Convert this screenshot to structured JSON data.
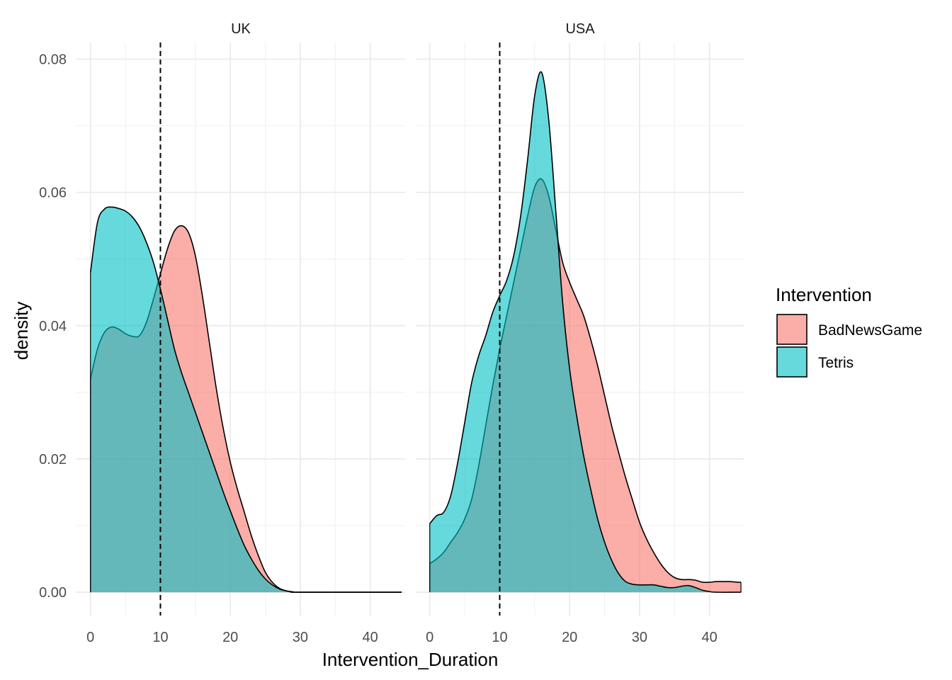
{
  "chart_data": {
    "type": "area",
    "subtype": "density",
    "xlabel": "Intervention_Duration",
    "ylabel": "density",
    "xlim": [
      -2,
      45
    ],
    "ylim": [
      -0.0035,
      0.0825
    ],
    "x_ticks": [
      0,
      10,
      20,
      30,
      40
    ],
    "y_ticks": [
      0.0,
      0.02,
      0.04,
      0.06,
      0.08
    ],
    "x_tick_labels": [
      "0",
      "10",
      "20",
      "30",
      "40"
    ],
    "y_tick_labels": [
      "0.00",
      "0.02",
      "0.04",
      "0.06",
      "0.08"
    ],
    "grid": true,
    "reference_line": {
      "x": 10,
      "style": "dashed"
    },
    "legend": {
      "title": "Intervention",
      "placement": "right",
      "entries": [
        {
          "name": "BadNewsGame",
          "color": "#F8766D"
        },
        {
          "name": "Tetris",
          "color": "#00BFC4"
        }
      ]
    },
    "panels": [
      {
        "label": "UK",
        "series": [
          {
            "name": "BadNewsGame",
            "color": "#F8766D",
            "points": [
              [
                0,
                0.032
              ],
              [
                1,
                0.0365
              ],
              [
                2,
                0.039
              ],
              [
                3,
                0.0398
              ],
              [
                4,
                0.0395
              ],
              [
                5,
                0.0388
              ],
              [
                6,
                0.0384
              ],
              [
                7,
                0.0385
              ],
              [
                8,
                0.0405
              ],
              [
                9,
                0.044
              ],
              [
                10,
                0.0478
              ],
              [
                11,
                0.0515
              ],
              [
                12,
                0.0542
              ],
              [
                13,
                0.055
              ],
              [
                14,
                0.054
              ],
              [
                15,
                0.0505
              ],
              [
                16,
                0.0445
              ],
              [
                17,
                0.0375
              ],
              [
                18,
                0.0305
              ],
              [
                19,
                0.0245
              ],
              [
                20,
                0.0195
              ],
              [
                21,
                0.0155
              ],
              [
                22,
                0.012
              ],
              [
                23,
                0.0085
              ],
              [
                24,
                0.0055
              ],
              [
                25,
                0.003
              ],
              [
                26,
                0.0015
              ],
              [
                27,
                0.0006
              ],
              [
                28,
                0.0002
              ],
              [
                29,
                5e-05
              ],
              [
                30,
                0.0
              ],
              [
                44.5,
                0.0
              ]
            ]
          },
          {
            "name": "Tetris",
            "color": "#00BFC4",
            "points": [
              [
                0,
                0.048
              ],
              [
                1,
                0.0555
              ],
              [
                2,
                0.0575
              ],
              [
                3,
                0.0578
              ],
              [
                4,
                0.0576
              ],
              [
                5,
                0.0572
              ],
              [
                6,
                0.0563
              ],
              [
                7,
                0.0548
              ],
              [
                8,
                0.0525
              ],
              [
                9,
                0.0495
              ],
              [
                10,
                0.0455
              ],
              [
                11,
                0.041
              ],
              [
                12,
                0.0365
              ],
              [
                13,
                0.033
              ],
              [
                14,
                0.03
              ],
              [
                15,
                0.027
              ],
              [
                16,
                0.024
              ],
              [
                17,
                0.021
              ],
              [
                18,
                0.018
              ],
              [
                19,
                0.015
              ],
              [
                20,
                0.0122
              ],
              [
                21,
                0.0095
              ],
              [
                22,
                0.007
              ],
              [
                23,
                0.005
              ],
              [
                24,
                0.0033
              ],
              [
                25,
                0.002
              ],
              [
                26,
                0.0011
              ],
              [
                27,
                0.0005
              ],
              [
                28,
                0.0002
              ],
              [
                29,
                5e-05
              ],
              [
                30,
                0.0
              ],
              [
                44.5,
                0.0
              ]
            ]
          }
        ]
      },
      {
        "label": "USA",
        "series": [
          {
            "name": "BadNewsGame",
            "color": "#F8766D",
            "points": [
              [
                0,
                0.0043
              ],
              [
                1,
                0.005
              ],
              [
                2,
                0.006
              ],
              [
                3,
                0.0075
              ],
              [
                4,
                0.009
              ],
              [
                5,
                0.011
              ],
              [
                6,
                0.014
              ],
              [
                7,
                0.019
              ],
              [
                8,
                0.025
              ],
              [
                9,
                0.031
              ],
              [
                10,
                0.0365
              ],
              [
                11,
                0.0415
              ],
              [
                12,
                0.0465
              ],
              [
                13,
                0.0515
              ],
              [
                14,
                0.0565
              ],
              [
                15,
                0.0608
              ],
              [
                16,
                0.062
              ],
              [
                17,
                0.0595
              ],
              [
                18,
                0.0545
              ],
              [
                19,
                0.0495
              ],
              [
                20,
                0.0465
              ],
              [
                21,
                0.044
              ],
              [
                22,
                0.0415
              ],
              [
                23,
                0.038
              ],
              [
                24,
                0.034
              ],
              [
                25,
                0.0295
              ],
              [
                26,
                0.025
              ],
              [
                27,
                0.021
              ],
              [
                28,
                0.0172
              ],
              [
                29,
                0.0138
              ],
              [
                30,
                0.0105
              ],
              [
                31,
                0.008
              ],
              [
                32,
                0.006
              ],
              [
                33,
                0.0043
              ],
              [
                34,
                0.003
              ],
              [
                35,
                0.0022
              ],
              [
                36,
                0.0019
              ],
              [
                37,
                0.0019
              ],
              [
                38,
                0.0018
              ],
              [
                39,
                0.0015
              ],
              [
                40,
                0.0015
              ],
              [
                41,
                0.0016
              ],
              [
                42,
                0.0016
              ],
              [
                43,
                0.0016
              ],
              [
                44,
                0.0015
              ],
              [
                44.5,
                0.0015
              ]
            ]
          },
          {
            "name": "Tetris",
            "color": "#00BFC4",
            "points": [
              [
                0,
                0.0103
              ],
              [
                1,
                0.0115
              ],
              [
                2,
                0.012
              ],
              [
                3,
                0.0145
              ],
              [
                4,
                0.0195
              ],
              [
                5,
                0.0255
              ],
              [
                6,
                0.0315
              ],
              [
                7,
                0.0355
              ],
              [
                8,
                0.0385
              ],
              [
                9,
                0.042
              ],
              [
                10,
                0.0445
              ],
              [
                11,
                0.0468
              ],
              [
                12,
                0.0505
              ],
              [
                13,
                0.0565
              ],
              [
                14,
                0.065
              ],
              [
                15,
                0.0745
              ],
              [
                16,
                0.078
              ],
              [
                17,
                0.071
              ],
              [
                18,
                0.0575
              ],
              [
                19,
                0.0435
              ],
              [
                20,
                0.0335
              ],
              [
                21,
                0.0265
              ],
              [
                22,
                0.0205
              ],
              [
                23,
                0.0155
              ],
              [
                24,
                0.011
              ],
              [
                25,
                0.0075
              ],
              [
                26,
                0.0048
              ],
              [
                27,
                0.0028
              ],
              [
                28,
                0.0016
              ],
              [
                29,
                0.0012
              ],
              [
                30,
                0.0011
              ],
              [
                31,
                0.0011
              ],
              [
                32,
                0.0011
              ],
              [
                33,
                0.0009
              ],
              [
                34,
                0.0007
              ],
              [
                35,
                0.0007
              ],
              [
                36,
                0.0009
              ],
              [
                37,
                0.001
              ],
              [
                38,
                0.0007
              ],
              [
                39,
                0.0003
              ],
              [
                40,
                0.0001
              ],
              [
                41,
                0.0
              ],
              [
                44.5,
                0.0
              ]
            ]
          }
        ]
      }
    ]
  }
}
